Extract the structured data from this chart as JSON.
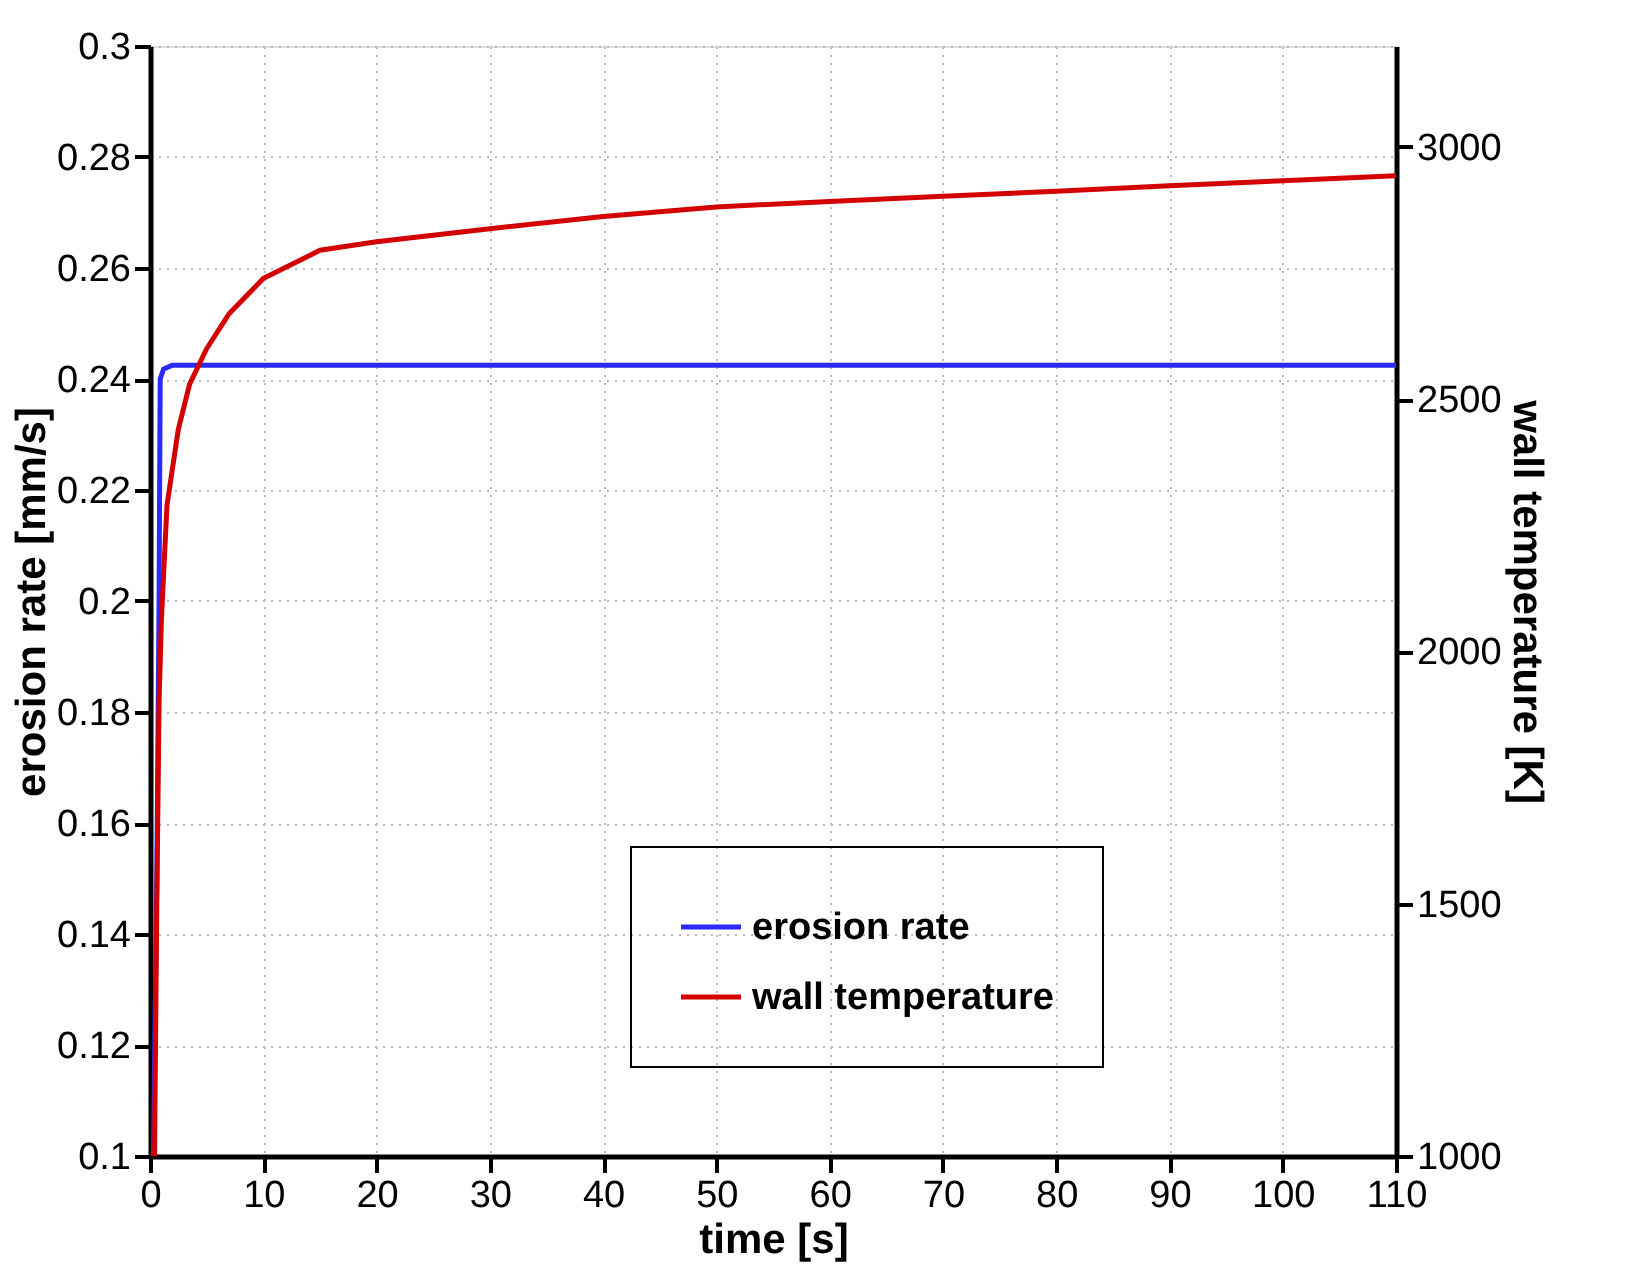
{
  "chart_data": {
    "type": "line",
    "xlabel": "time [s]",
    "ylabel": "erosion rate [mm/s]",
    "y2label": "wall temperature [K]",
    "xlim": [
      0,
      110
    ],
    "xticks": [
      0,
      10,
      20,
      30,
      40,
      50,
      60,
      70,
      80,
      90,
      100,
      110
    ],
    "ylim": [
      0.1,
      0.3
    ],
    "yticks": [
      0.1,
      0.12,
      0.14,
      0.16,
      0.18,
      0.2,
      0.22,
      0.24,
      0.26,
      0.28,
      0.3
    ],
    "y2lim": [
      1000,
      3200
    ],
    "y2ticks": [
      1000,
      1500,
      2000,
      2500,
      3000
    ],
    "grid": true,
    "legend": "bottom right",
    "line_style": "solid",
    "marker": "none",
    "series": [
      {
        "name": "erosion rate",
        "color": "#2b2bff",
        "x": [
          0.3,
          0.6,
          0.8,
          0.9,
          1.2,
          2,
          110
        ],
        "values": [
          0.1,
          0.15,
          0.2,
          0.24,
          0.2418,
          0.2425,
          0.2425
        ]
      },
      {
        "name": "wall temperature",
        "color": "#d40000",
        "axis": "y2",
        "x": [
          0.4,
          0.6,
          0.8,
          1,
          1.5,
          2.5,
          3.5,
          5,
          7,
          10,
          15,
          20,
          30,
          40,
          50,
          60,
          70,
          80,
          90,
          100,
          110
        ],
        "values": [
          1000,
          1500,
          1900,
          2060,
          2290,
          2440,
          2530,
          2600,
          2670,
          2739,
          2795,
          2812,
          2838,
          2862,
          2881,
          2892,
          2902,
          2912,
          2923,
          2933,
          2943
        ]
      }
    ]
  }
}
